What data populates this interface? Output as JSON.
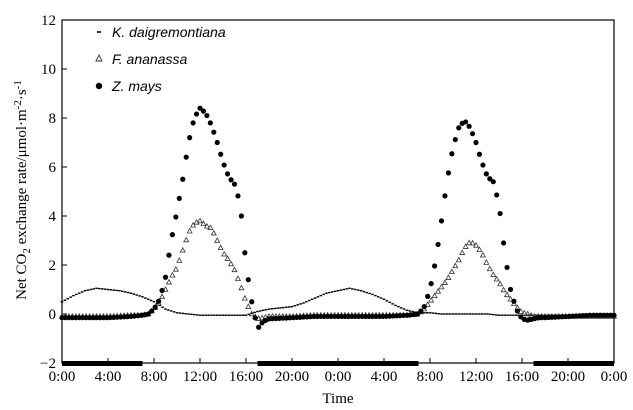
{
  "chart_data": {
    "type": "scatter",
    "xlabel": "Time",
    "ylabel_parts": [
      "Net CO",
      "2",
      " exchange rate/μmol·m",
      "-2",
      "·s",
      "-1"
    ],
    "x_tick_labels": [
      "0:00",
      "4:00",
      "8:00",
      "12:00",
      "16:00",
      "20:00",
      "0:00",
      "4:00",
      "8:00",
      "12:00",
      "16:00",
      "20:00",
      "0:00"
    ],
    "x_range_hours": [
      0,
      48
    ],
    "y_ticks": [
      "−2",
      "0",
      "2",
      "4",
      "6",
      "8",
      "10",
      "12"
    ],
    "ylim": [
      -2,
      12
    ],
    "legend_position": "top-left",
    "dark_periods_hours": [
      [
        0,
        7
      ],
      [
        17,
        31
      ],
      [
        41,
        48
      ]
    ],
    "series": [
      {
        "name": "K. daigremontiana",
        "marker": "dash",
        "x_hours": [
          0,
          1,
          2,
          3,
          4,
          5,
          6,
          7,
          8,
          9,
          10,
          11,
          12,
          13,
          14,
          15,
          16,
          17,
          18,
          19,
          20,
          21,
          22,
          23,
          24,
          25,
          26,
          27,
          28,
          29,
          30,
          31,
          32,
          33,
          34,
          35,
          36,
          37,
          38,
          39,
          40,
          41,
          42,
          43,
          44,
          45,
          46,
          47,
          48
        ],
        "y": [
          0.5,
          0.75,
          0.95,
          1.05,
          1.0,
          0.95,
          0.85,
          0.7,
          0.5,
          0.2,
          0.05,
          0.0,
          -0.05,
          -0.05,
          -0.05,
          -0.05,
          -0.05,
          0.1,
          0.2,
          0.25,
          0.3,
          0.45,
          0.65,
          0.85,
          0.95,
          1.05,
          0.95,
          0.8,
          0.6,
          0.35,
          0.15,
          0.05,
          0.05,
          0.0,
          0.0,
          0.0,
          0.0,
          0.0,
          -0.05,
          -0.05,
          -0.05,
          -0.05,
          -0.05,
          -0.05,
          -0.05,
          -0.05,
          -0.05,
          -0.05,
          -0.05
        ]
      },
      {
        "name": "F. ananassa",
        "marker": "triangle",
        "x_hours": [
          0,
          2,
          4,
          6,
          7,
          7.5,
          8,
          8.5,
          9,
          9.5,
          10,
          10.5,
          11,
          11.5,
          12,
          12.5,
          13,
          13.5,
          14,
          14.5,
          15,
          15.5,
          16,
          16.5,
          17,
          18,
          20,
          22,
          24,
          26,
          28,
          30,
          31,
          31.5,
          32,
          32.5,
          33,
          33.5,
          34,
          34.5,
          35,
          35.5,
          36,
          36.5,
          37,
          37.5,
          38,
          38.5,
          39,
          39.5,
          40,
          40.5,
          41,
          42,
          44,
          46,
          48
        ],
        "y": [
          -0.1,
          -0.1,
          -0.1,
          -0.05,
          -0.05,
          0.0,
          0.2,
          0.5,
          1.0,
          1.5,
          1.9,
          2.6,
          3.3,
          3.7,
          3.8,
          3.6,
          3.5,
          3.0,
          2.5,
          2.2,
          1.8,
          1.2,
          0.5,
          0.0,
          -0.2,
          -0.1,
          -0.1,
          -0.05,
          -0.05,
          -0.05,
          -0.05,
          -0.05,
          0.0,
          0.2,
          0.5,
          0.8,
          1.1,
          1.4,
          1.8,
          2.2,
          2.7,
          2.95,
          2.8,
          2.5,
          2.0,
          1.6,
          1.3,
          0.9,
          0.6,
          0.3,
          0.05,
          0.0,
          -0.1,
          -0.1,
          -0.1,
          -0.1,
          -0.1
        ]
      },
      {
        "name": "Z. mays",
        "marker": "circle",
        "x_hours": [
          0,
          2,
          4,
          6,
          7,
          7.5,
          8,
          8.5,
          9,
          9.5,
          10,
          10.5,
          11,
          11.5,
          12,
          12.5,
          13,
          13.5,
          14,
          14.5,
          15,
          15.5,
          16,
          16.5,
          17,
          17.5,
          18,
          20,
          22,
          24,
          26,
          28,
          30,
          31,
          31.5,
          32,
          32.5,
          33,
          33.5,
          34,
          34.5,
          35,
          35.5,
          36,
          36.5,
          37,
          37.5,
          38,
          38.5,
          39,
          39.5,
          40,
          40.5,
          41,
          41.5,
          42,
          44,
          46,
          48
        ],
        "y": [
          -0.15,
          -0.15,
          -0.15,
          -0.1,
          -0.05,
          0.0,
          0.2,
          0.6,
          1.5,
          3.0,
          4.2,
          5.5,
          7.0,
          8.0,
          8.4,
          8.2,
          7.7,
          7.0,
          6.2,
          5.6,
          5.3,
          4.5,
          2.0,
          0.5,
          -0.6,
          -0.3,
          -0.2,
          -0.15,
          -0.1,
          -0.1,
          -0.1,
          -0.1,
          -0.05,
          0.0,
          0.3,
          1.0,
          2.2,
          3.8,
          5.5,
          6.8,
          7.6,
          7.9,
          7.6,
          7.0,
          6.2,
          5.6,
          5.4,
          4.5,
          2.5,
          1.0,
          0.2,
          -0.2,
          -0.25,
          -0.2,
          -0.15,
          -0.15,
          -0.1,
          -0.05,
          -0.05
        ]
      }
    ]
  }
}
